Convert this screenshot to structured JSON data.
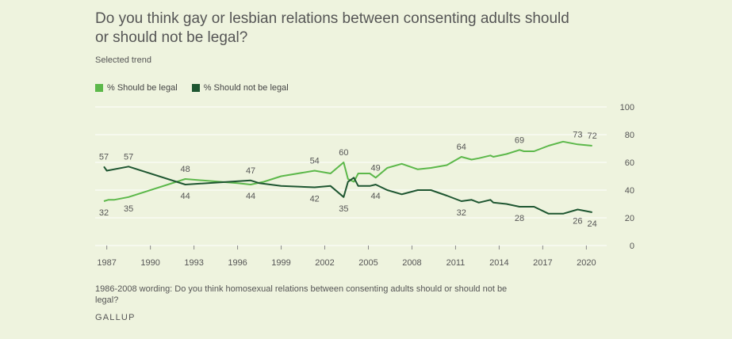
{
  "title": "Do you think gay or lesbian relations between consenting adults should or should not be legal?",
  "subtitle": "Selected trend",
  "note": "1986-2008 wording: Do you think homosexual relations between consenting adults should or should not be legal?",
  "source": "GALLUP",
  "colors": {
    "legal": "#5cb84a",
    "not_legal": "#1e5631",
    "grid": "#ffffff"
  },
  "chart_data": {
    "type": "line",
    "title": "Do you think gay or lesbian relations between consenting adults should or should not be legal?",
    "xlabel": "",
    "ylabel": "",
    "xlim": [
      1986.2,
      2021.4
    ],
    "ylim": [
      0,
      100
    ],
    "grid": true,
    "legend_position": "top-left",
    "x_ticks": [
      1987,
      1990,
      1993,
      1996,
      1999,
      2002,
      2005,
      2008,
      2011,
      2014,
      2017,
      2020
    ],
    "y_ticks": [
      0,
      20,
      40,
      60,
      80,
      100
    ],
    "series": [
      {
        "name": "% Should be legal",
        "color": "#5cb84a",
        "points": [
          [
            1986.8,
            32
          ],
          [
            1987.1,
            33
          ],
          [
            1987.5,
            33
          ],
          [
            1988.5,
            35
          ],
          [
            1992.4,
            48
          ],
          [
            1996.0,
            45
          ],
          [
            1996.9,
            44
          ],
          [
            1997.8,
            46
          ],
          [
            1999.0,
            50
          ],
          [
            2001.3,
            54
          ],
          [
            2002.4,
            52
          ],
          [
            2003.3,
            60
          ],
          [
            2003.6,
            48
          ],
          [
            2004.0,
            46
          ],
          [
            2004.3,
            52
          ],
          [
            2005.1,
            52
          ],
          [
            2005.5,
            49
          ],
          [
            2006.3,
            56
          ],
          [
            2007.3,
            59
          ],
          [
            2008.4,
            55
          ],
          [
            2009.3,
            56
          ],
          [
            2010.4,
            58
          ],
          [
            2011.4,
            64
          ],
          [
            2012.1,
            62
          ],
          [
            2012.6,
            63
          ],
          [
            2013.4,
            65
          ],
          [
            2013.6,
            64
          ],
          [
            2014.5,
            66
          ],
          [
            2015.4,
            69
          ],
          [
            2015.7,
            68
          ],
          [
            2016.4,
            68
          ],
          [
            2017.4,
            72
          ],
          [
            2018.4,
            75
          ],
          [
            2019.4,
            73
          ],
          [
            2020.4,
            72
          ]
        ],
        "labels": [
          {
            "x": 1986.8,
            "y": 32,
            "text": "32",
            "pos": "below"
          },
          {
            "x": 1988.5,
            "y": 35,
            "text": "35",
            "pos": "below"
          },
          {
            "x": 1992.4,
            "y": 48,
            "text": "48",
            "pos": "above"
          },
          {
            "x": 1996.9,
            "y": 44,
            "text": "44",
            "pos": "below"
          },
          {
            "x": 2001.3,
            "y": 54,
            "text": "54",
            "pos": "above"
          },
          {
            "x": 2003.3,
            "y": 60,
            "text": "60",
            "pos": "above"
          },
          {
            "x": 2005.5,
            "y": 49,
            "text": "49",
            "pos": "above"
          },
          {
            "x": 2011.4,
            "y": 64,
            "text": "64",
            "pos": "above"
          },
          {
            "x": 2015.4,
            "y": 69,
            "text": "69",
            "pos": "above"
          },
          {
            "x": 2019.4,
            "y": 73,
            "text": "73",
            "pos": "above"
          },
          {
            "x": 2020.4,
            "y": 72,
            "text": "72",
            "pos": "above"
          }
        ]
      },
      {
        "name": "% Should not be legal",
        "color": "#1e5631",
        "points": [
          [
            1986.8,
            57
          ],
          [
            1987.0,
            54
          ],
          [
            1988.5,
            57
          ],
          [
            1992.4,
            44
          ],
          [
            1996.9,
            47
          ],
          [
            1997.5,
            45
          ],
          [
            1999.0,
            43
          ],
          [
            2001.3,
            42
          ],
          [
            2002.4,
            43
          ],
          [
            2003.3,
            35
          ],
          [
            2003.6,
            46
          ],
          [
            2004.0,
            49
          ],
          [
            2004.3,
            43
          ],
          [
            2005.1,
            43
          ],
          [
            2005.5,
            44
          ],
          [
            2006.3,
            40
          ],
          [
            2007.3,
            37
          ],
          [
            2008.4,
            40
          ],
          [
            2009.3,
            40
          ],
          [
            2010.4,
            36
          ],
          [
            2011.4,
            32
          ],
          [
            2012.1,
            33
          ],
          [
            2012.6,
            31
          ],
          [
            2013.4,
            33
          ],
          [
            2013.6,
            31
          ],
          [
            2014.5,
            30
          ],
          [
            2015.4,
            28
          ],
          [
            2016.4,
            28
          ],
          [
            2017.4,
            23
          ],
          [
            2018.4,
            23
          ],
          [
            2019.4,
            26
          ],
          [
            2020.4,
            24
          ]
        ],
        "labels": [
          {
            "x": 1986.8,
            "y": 57,
            "text": "57",
            "pos": "above"
          },
          {
            "x": 1988.5,
            "y": 57,
            "text": "57",
            "pos": "above"
          },
          {
            "x": 1992.4,
            "y": 44,
            "text": "44",
            "pos": "below"
          },
          {
            "x": 1996.9,
            "y": 47,
            "text": "47",
            "pos": "above"
          },
          {
            "x": 2001.3,
            "y": 42,
            "text": "42",
            "pos": "below"
          },
          {
            "x": 2003.3,
            "y": 35,
            "text": "35",
            "pos": "below"
          },
          {
            "x": 2005.5,
            "y": 44,
            "text": "44",
            "pos": "below"
          },
          {
            "x": 2011.4,
            "y": 32,
            "text": "32",
            "pos": "below"
          },
          {
            "x": 2015.4,
            "y": 28,
            "text": "28",
            "pos": "below"
          },
          {
            "x": 2019.4,
            "y": 26,
            "text": "26",
            "pos": "below"
          },
          {
            "x": 2020.4,
            "y": 24,
            "text": "24",
            "pos": "below"
          }
        ]
      }
    ]
  }
}
